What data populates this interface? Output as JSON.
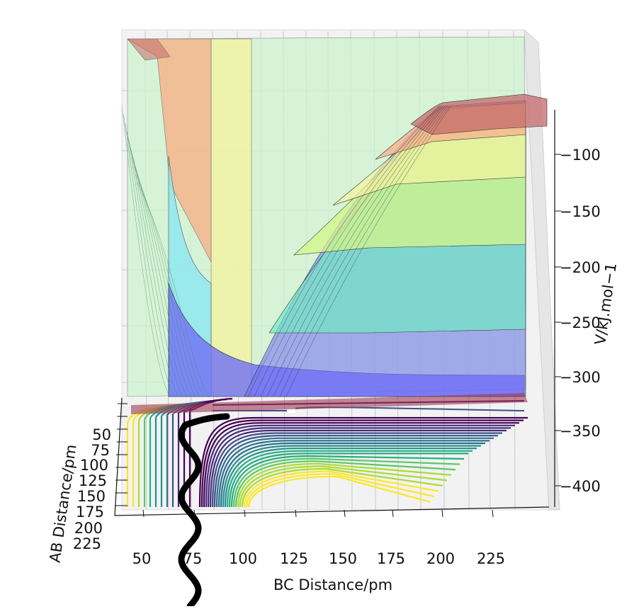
{
  "chart_data": {
    "type": "surface3d",
    "title": "",
    "xlabel": "BC Distance/pm",
    "ylabel": "AB Distance/pm",
    "zlabel": "V/kJ.mol−1",
    "x_ticks": [
      "50",
      "75",
      "100",
      "125",
      "150",
      "175",
      "200",
      "225"
    ],
    "y_ticks": [
      "50",
      "75",
      "100",
      "125",
      "150",
      "175",
      "200",
      "225"
    ],
    "z_ticks": [
      "−100",
      "−150",
      "−200",
      "−250",
      "−300",
      "−350",
      "−400"
    ],
    "xlim": [
      30,
      245
    ],
    "zlim": [
      -420,
      -70
    ],
    "grid": true,
    "surface_colormap": "jet",
    "contour_colormap": "viridis",
    "colors": {
      "blue": "#6f6ff5",
      "cyan": "#8fe6f0",
      "teal": "#72e8c4",
      "yellowgreen": "#d4f58a",
      "yellow": "#f3f3a0",
      "orange": "#f5b48c",
      "red": "#c46a6a",
      "palegreen": "#cdf3cd",
      "trajectory": "#000000"
    }
  }
}
